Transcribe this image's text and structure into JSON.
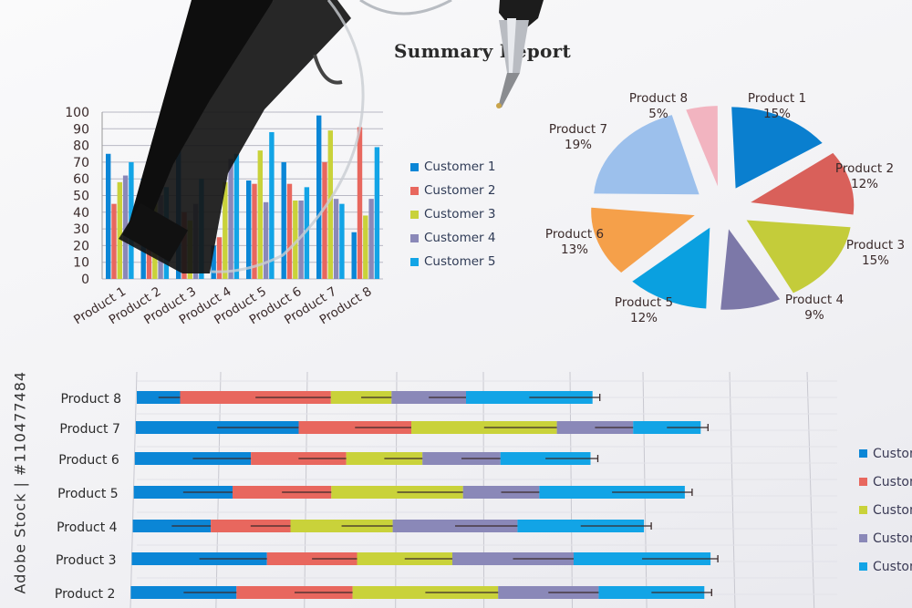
{
  "report_title": "Summary Report",
  "watermark": "Adobe Stock | #110477484",
  "colors": {
    "customers": [
      "#0b86d6",
      "#e8675e",
      "#c9d23a",
      "#8a88b8",
      "#12a4e6"
    ],
    "pie": [
      "#0a7fcf",
      "#d9605a",
      "#c4cc3a",
      "#7c78a8",
      "#0aa0e0",
      "#f5a04a",
      "#9cc0ec",
      "#f2b4c0"
    ]
  },
  "chart_data": [
    {
      "type": "bar",
      "categories": [
        "Product 1",
        "Product 2",
        "Product 3",
        "Product 4",
        "Product 5",
        "Product 6",
        "Product 7",
        "Product 8"
      ],
      "yticks": [
        "0",
        "10",
        "20",
        "30",
        "40",
        "50",
        "60",
        "70",
        "80",
        "90",
        "100"
      ],
      "ylim": [
        0,
        100
      ],
      "grid": true,
      "legend": "right",
      "series": [
        {
          "name": "Customer 1",
          "values": [
            75,
            60,
            78,
            20,
            59,
            70,
            98,
            28
          ]
        },
        {
          "name": "Customer 2",
          "values": [
            45,
            65,
            40,
            25,
            57,
            57,
            70,
            91
          ]
        },
        {
          "name": "Customer 3",
          "values": [
            58,
            81,
            35,
            58,
            77,
            47,
            89,
            38
          ]
        },
        {
          "name": "Customer 4",
          "values": [
            62,
            50,
            45,
            72,
            46,
            47,
            48,
            48
          ]
        },
        {
          "name": "Customer 5",
          "values": [
            70,
            55,
            60,
            75,
            88,
            55,
            45,
            79
          ]
        }
      ]
    },
    {
      "type": "pie",
      "slices": [
        {
          "label": "Product 1",
          "pct_label": "15%",
          "value": 15
        },
        {
          "label": "Product 2",
          "pct_label": "12%",
          "value": 12
        },
        {
          "label": "Product 3",
          "pct_label": "15%",
          "value": 15
        },
        {
          "label": "Product 4",
          "pct_label": "9%",
          "value": 9
        },
        {
          "label": "Product 5",
          "pct_label": "12%",
          "value": 12
        },
        {
          "label": "Product 6",
          "pct_label": "13%",
          "value": 13
        },
        {
          "label": "Product 7",
          "pct_label": "19%",
          "value": 19
        },
        {
          "label": "Product 8",
          "pct_label": "5%",
          "value": 5
        }
      ]
    },
    {
      "type": "bar",
      "orientation": "horizontal",
      "stacked": true,
      "error_bars": true,
      "grid": true,
      "legend": "right",
      "categories": [
        "Product 8",
        "Product 7",
        "Product 6",
        "Product 5",
        "Product 4",
        "Product 3",
        "Product 2"
      ],
      "series": [
        {
          "name": "Customer 1",
          "values": [
            25,
            94,
            67,
            57,
            45,
            78,
            61
          ]
        },
        {
          "name": "Customer 2",
          "values": [
            87,
            65,
            55,
            57,
            46,
            52,
            67
          ]
        },
        {
          "name": "Customer 3",
          "values": [
            35,
            84,
            44,
            76,
            59,
            55,
            84
          ]
        },
        {
          "name": "Customer 4",
          "values": [
            43,
            44,
            45,
            44,
            72,
            70,
            58
          ]
        },
        {
          "name": "Customer 5",
          "values": [
            73,
            39,
            52,
            84,
            73,
            79,
            61
          ]
        }
      ]
    }
  ]
}
